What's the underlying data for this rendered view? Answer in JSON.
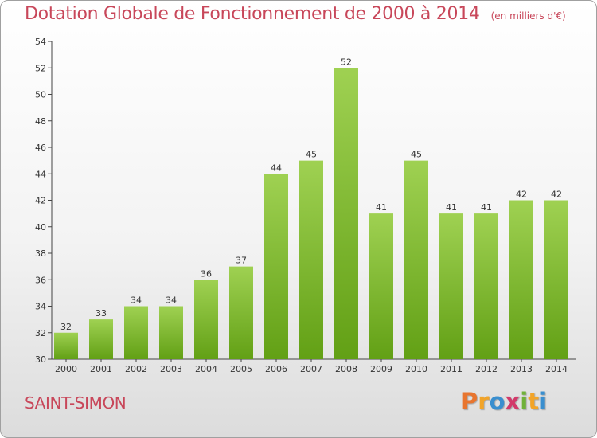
{
  "title": "Dotation Globale de Fonctionnement de 2000 à 2014",
  "unit_label": "(en milliers d'€)",
  "commune": "SAINT-SIMON",
  "logo_text": "Proxiti",
  "colors": {
    "title": "#c8475a",
    "bar_top": "#9fd152",
    "bar_bottom": "#62a015",
    "logo": [
      "#e8752f",
      "#f2a428",
      "#3a8fcf",
      "#d23a6a",
      "#70b13a",
      "#f2a428",
      "#3a8fcf"
    ]
  },
  "chart_data": {
    "type": "bar",
    "title": "Dotation Globale de Fonctionnement de 2000 à 2014",
    "subtitle": "(en milliers d'€)",
    "xlabel": "",
    "ylabel": "",
    "categories": [
      "2000",
      "2001",
      "2002",
      "2003",
      "2004",
      "2005",
      "2006",
      "2007",
      "2008",
      "2009",
      "2010",
      "2011",
      "2012",
      "2013",
      "2014"
    ],
    "values": [
      32,
      33,
      34,
      34,
      36,
      37,
      44,
      45,
      52,
      41,
      45,
      41,
      41,
      42,
      42
    ],
    "ylim": [
      30,
      54
    ],
    "yticks": [
      30,
      32,
      34,
      36,
      38,
      40,
      42,
      44,
      46,
      48,
      50,
      52,
      54
    ],
    "grid": false,
    "legend": "none"
  }
}
